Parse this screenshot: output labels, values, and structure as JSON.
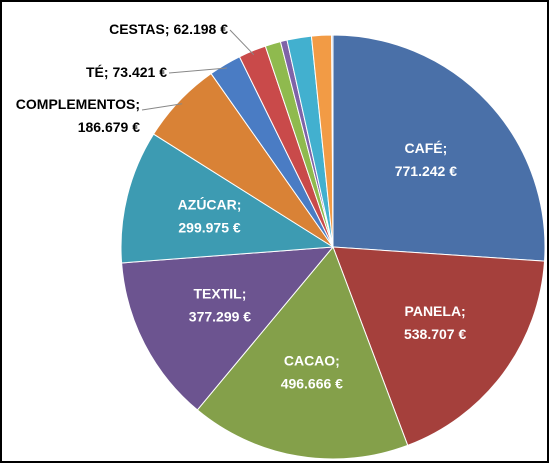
{
  "chart_data": {
    "type": "pie",
    "categories": [
      "CAFÉ;",
      "PANELA;",
      "CACAO;",
      "TEXTIL;",
      "AZÚCAR;",
      "COMPLEMENTOS;",
      "TÉ;",
      "CESTAS;",
      null,
      null,
      null,
      null,
      null
    ],
    "values": [
      771242,
      538707,
      496666,
      377299,
      299975,
      186679,
      73421,
      62198,
      35000,
      15000,
      55000,
      45000,
      3000
    ],
    "value_labels": [
      "771.242 €",
      "538.707 €",
      "496.666 €",
      "377.299 €",
      "299.975 €",
      "186.679 €",
      "73.421 €",
      "62.198 €",
      null,
      null,
      null,
      null,
      null
    ],
    "colors": [
      "#4a70a8",
      "#a5403c",
      "#84a04a",
      "#6c5490",
      "#3d9bb2",
      "#d98236",
      "#4a7cc4",
      "#c94a4a",
      "#8fba4e",
      "#7f63a8",
      "#42b0cf",
      "#f29b45",
      "#a0bde0"
    ]
  }
}
